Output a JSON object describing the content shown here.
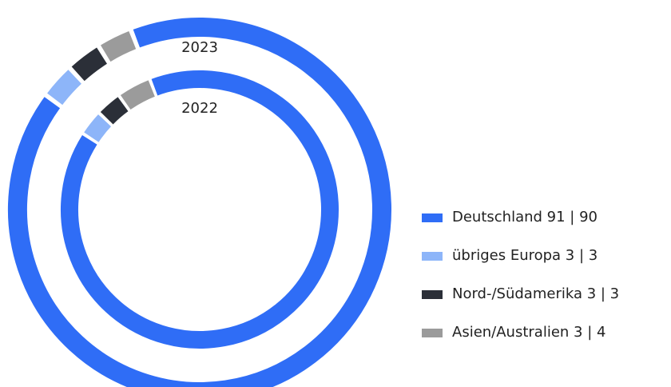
{
  "chart_data": {
    "type": "donut",
    "categories": [
      "Deutschland 91 | 90",
      "übriges Europa 3 | 3",
      "Nord-/Südamerika 3 | 3",
      "Asien/Australien  3 | 4"
    ],
    "colors": [
      "#2f6df6",
      "#8db5f9",
      "#2b2f38",
      "#9b9b9b"
    ],
    "series": [
      {
        "name": "2023",
        "values": [
          91,
          3,
          3,
          3
        ]
      },
      {
        "name": "2022",
        "values": [
          90,
          3,
          3,
          4
        ]
      }
    ]
  }
}
